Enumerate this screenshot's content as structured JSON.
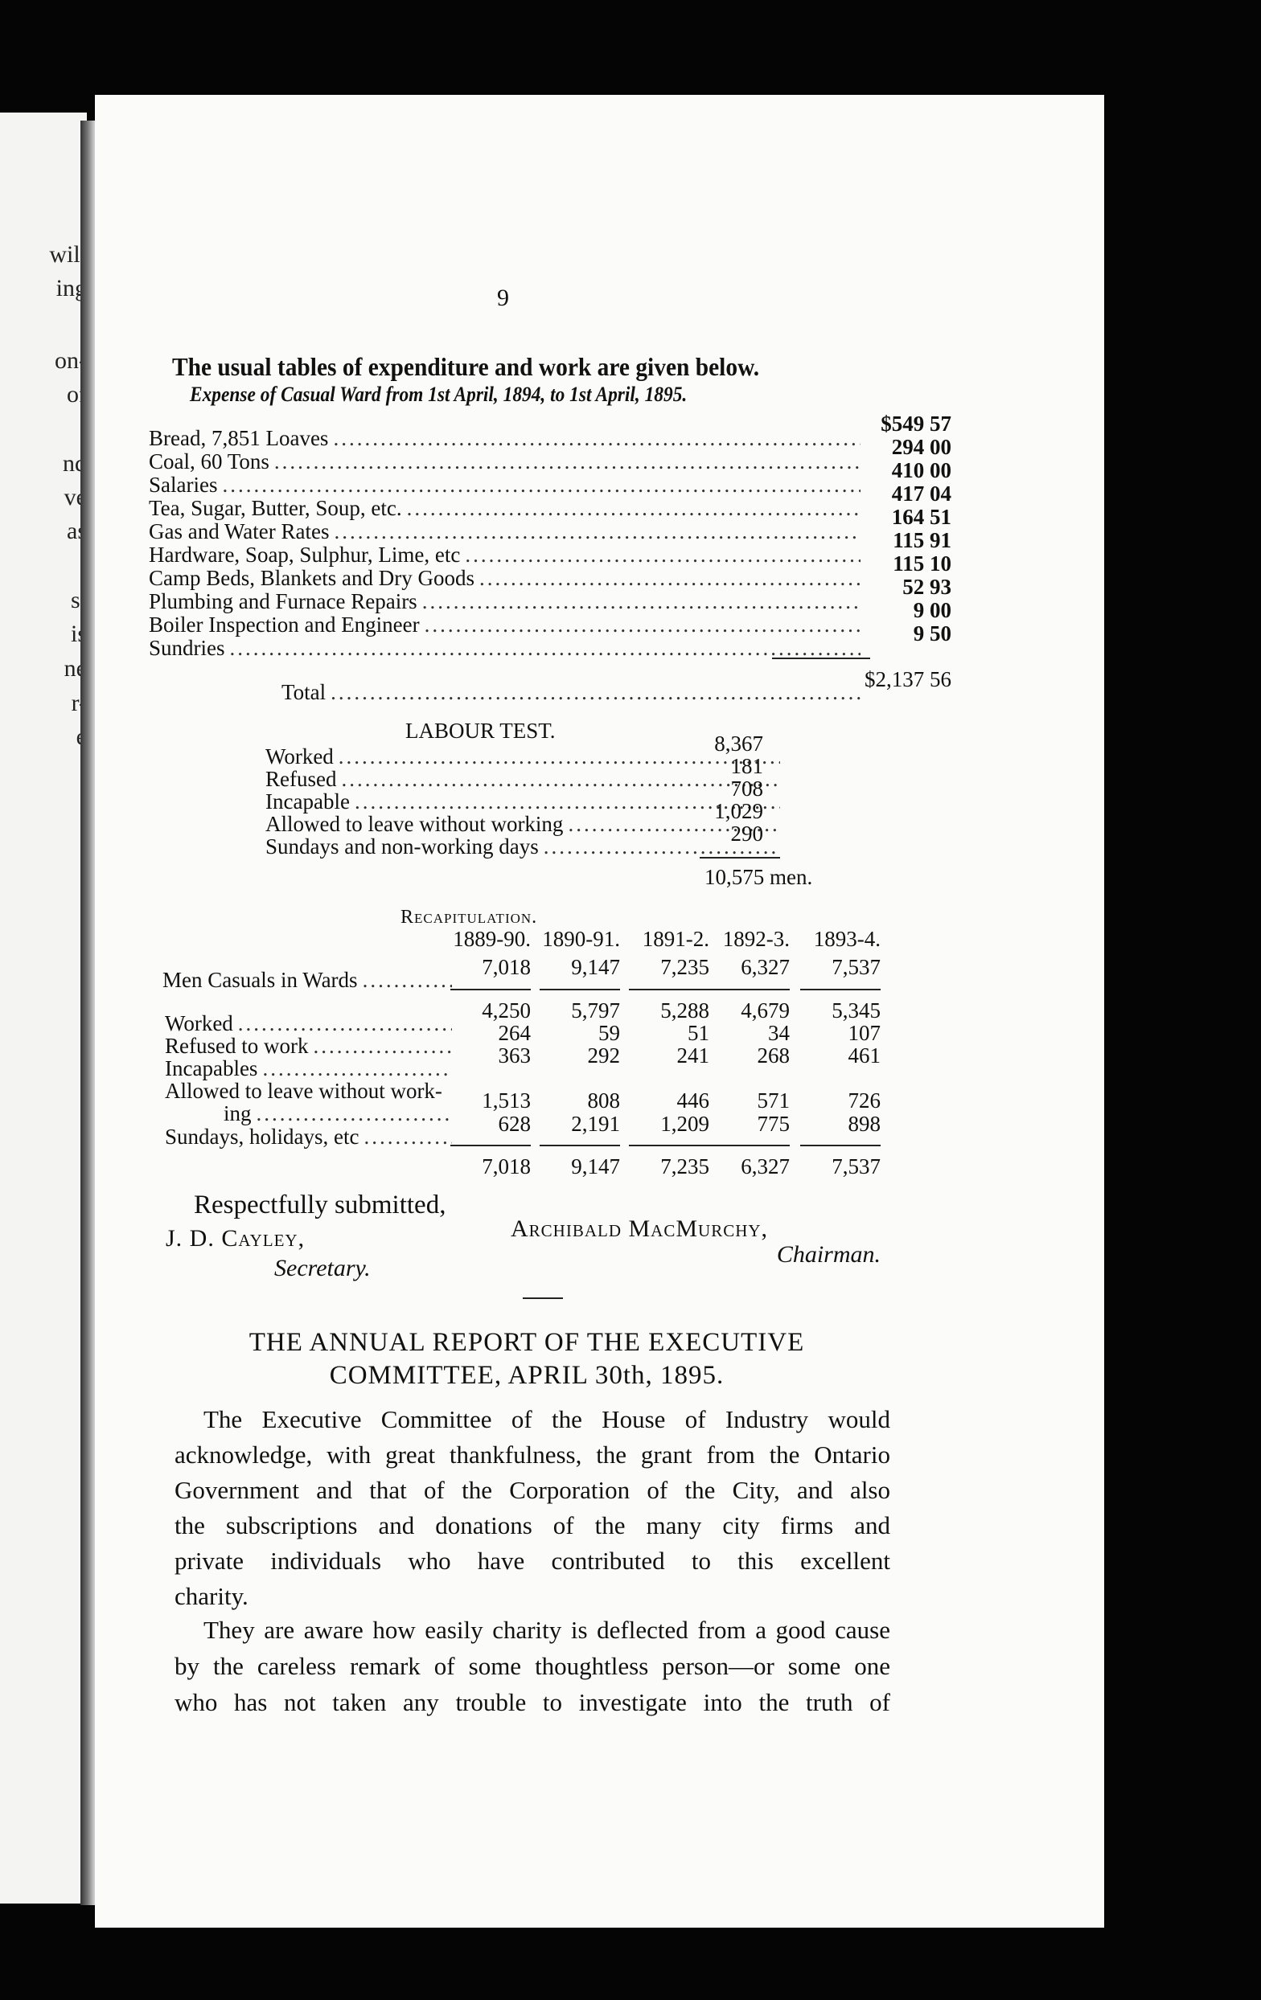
{
  "left_page_fragments": [
    "will",
    "ing",
    "on-",
    "of",
    "nd",
    "ve",
    "as",
    "st",
    "is",
    "ne",
    "r-",
    "e"
  ],
  "page_number": "9",
  "intro": "The usual tables of expenditure and work are given below.",
  "expense": {
    "heading": "Expense of Casual Ward from 1st April, 1894, to 1st April, 1895.",
    "items": [
      {
        "label": "Bread, 7,851 Loaves",
        "amount": "$549 57"
      },
      {
        "label": "Coal, 60 Tons",
        "amount": "294 00"
      },
      {
        "label": "Salaries",
        "amount": "410 00"
      },
      {
        "label": "Tea, Sugar, Butter, Soup, etc.",
        "amount": "417 04"
      },
      {
        "label": "Gas and Water Rates",
        "amount": "164 51"
      },
      {
        "label": "Hardware, Soap, Sulphur, Lime, etc",
        "amount": "115 91"
      },
      {
        "label": "Camp Beds, Blankets and Dry Goods",
        "amount": "115 10"
      },
      {
        "label": "Plumbing and Furnace Repairs",
        "amount": "52 93"
      },
      {
        "label": "Boiler Inspection and Engineer",
        "amount": "9 00"
      },
      {
        "label": "Sundries",
        "amount": "9 50"
      }
    ],
    "total_label": "Total",
    "total": "$2,137 56"
  },
  "labour_test": {
    "heading": "LABOUR TEST.",
    "items": [
      {
        "label": "Worked",
        "value": "8,367"
      },
      {
        "label": "Refused",
        "value": "181"
      },
      {
        "label": "Incapable",
        "value": "708"
      },
      {
        "label": "Allowed to leave without working",
        "value": "1,029"
      },
      {
        "label": "Sundays and non-working days",
        "value": "290"
      }
    ],
    "total": "10,575 men."
  },
  "recapitulation": {
    "heading": "Recapitulation.",
    "years": [
      "1889-90.",
      "1890-91.",
      "1891-2.",
      "1892-3.",
      "1893-4."
    ],
    "casuals_label": "Men Casuals in Wards",
    "casuals": [
      "7,018",
      "9,147",
      "7,235",
      "6,327",
      "7,537"
    ],
    "rows": [
      {
        "label": "Worked",
        "values": [
          "4,250",
          "5,797",
          "5,288",
          "4,679",
          "5,345"
        ]
      },
      {
        "label": "Refused to work",
        "values": [
          "264",
          "59",
          "51",
          "34",
          "107"
        ]
      },
      {
        "label": "Incapables",
        "values": [
          "363",
          "292",
          "241",
          "268",
          "461"
        ]
      },
      {
        "label": "Allowed to leave without work-",
        "label2": "ing",
        "values": [
          "1,513",
          "808",
          "446",
          "571",
          "726"
        ]
      },
      {
        "label": "Sundays, holidays, etc",
        "values": [
          "628",
          "2,191",
          "1,209",
          "775",
          "898"
        ]
      }
    ],
    "totals": [
      "7,018",
      "9,147",
      "7,235",
      "6,327",
      "7,537"
    ]
  },
  "signatures": {
    "closing": "Respectfully submitted,",
    "secretary_name": "J. D. Cayley,",
    "secretary_title": "Secretary.",
    "chairman_name": "Archibald MacMurchy,",
    "chairman_title": "Chairman."
  },
  "report": {
    "title_line1": "THE ANNUAL REPORT OF THE EXECUTIVE",
    "title_line2": "COMMITTEE, APRIL 30th, 1895.",
    "paragraph1": [
      "The Executive Committee of the House of Industry would",
      "acknowledge, with great thankfulness, the grant from the Ontario",
      "Government and that of the Corporation of the City, and also",
      "the subscriptions and donations of the many city firms and",
      "private individuals who have contributed to this excellent",
      "charity."
    ],
    "paragraph2": [
      "They are aware how easily charity is deflected from a good cause",
      "by the careless remark of some thoughtless person—or some one",
      "who has not taken any trouble to investigate into the truth of"
    ]
  }
}
